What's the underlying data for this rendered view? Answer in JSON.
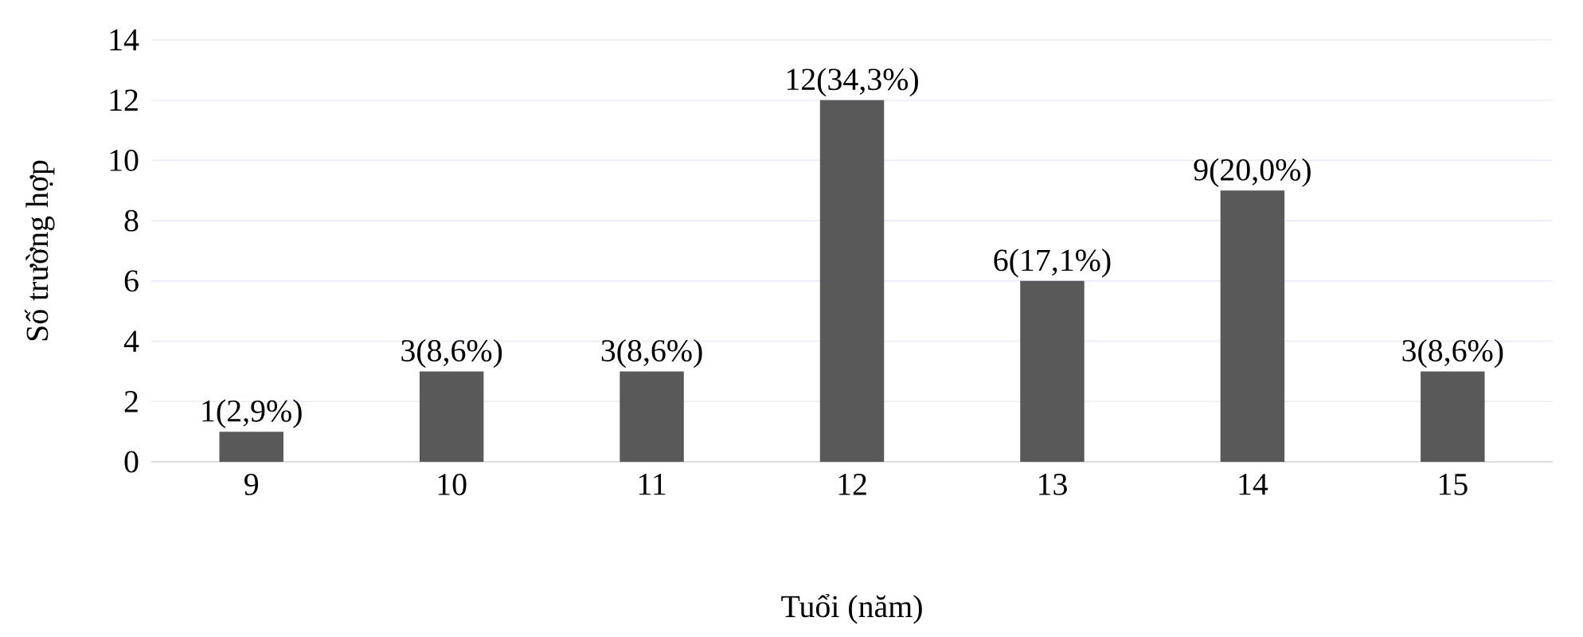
{
  "chart_data": {
    "type": "bar",
    "xlabel": "Tuổi (năm)",
    "ylabel": "Số trường hợp",
    "categories": [
      "9",
      "10",
      "11",
      "12",
      "13",
      "14",
      "15"
    ],
    "values": [
      1,
      3,
      3,
      12,
      6,
      9,
      3
    ],
    "value_labels": [
      "1(2,9%)",
      "3(8,6%)",
      "3(8,6%)",
      "12(34,3%)",
      "6(17,1%)",
      "9(20,0%)",
      "3(8,6%)"
    ],
    "color": "#595959",
    "ylim": [
      0,
      14
    ],
    "yticks": [
      0,
      2,
      4,
      6,
      8,
      10,
      12,
      14
    ],
    "grid": "y"
  }
}
